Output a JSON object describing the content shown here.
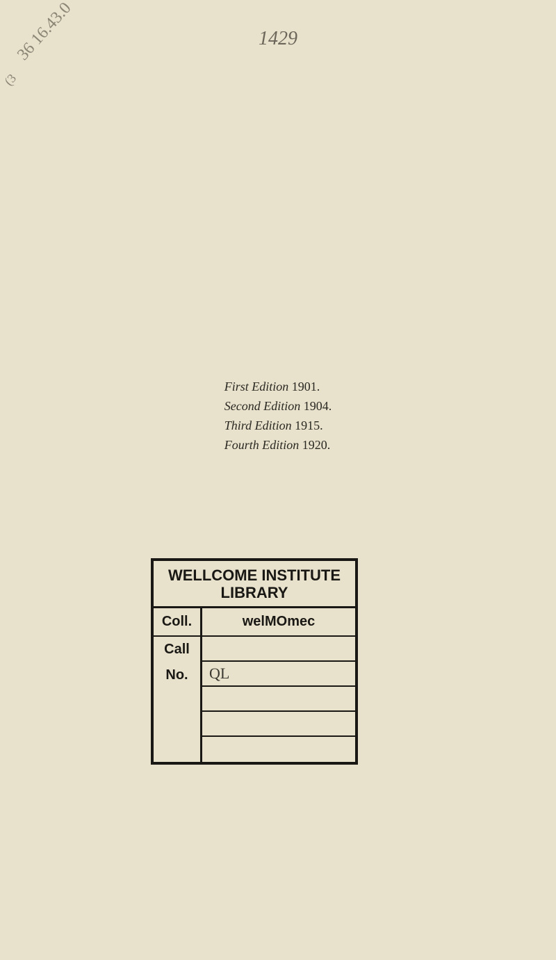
{
  "page_number": "1429",
  "annotations": {
    "diagonal_main": "36 16.43.0",
    "diagonal_small": "(3"
  },
  "editions": {
    "lines": [
      {
        "label": "First Edition",
        "year": "1901."
      },
      {
        "label": "Second Edition",
        "year": "1904."
      },
      {
        "label": "Third Edition",
        "year": "1915."
      },
      {
        "label": "Fourth Edition",
        "year": "1920."
      }
    ]
  },
  "library_card": {
    "header_line1": "WELLCOME INSTITUTE",
    "header_line2": "LIBRARY",
    "coll_label": "Coll.",
    "coll_value": "welMOmec",
    "call_label": "Call",
    "no_label": "No.",
    "call_no_values": [
      "",
      "QL",
      "",
      "",
      ""
    ]
  },
  "colors": {
    "background": "#e8e2cc",
    "text_dark": "#2a2822",
    "border": "#1a1814",
    "pencil": "#8a8575"
  }
}
